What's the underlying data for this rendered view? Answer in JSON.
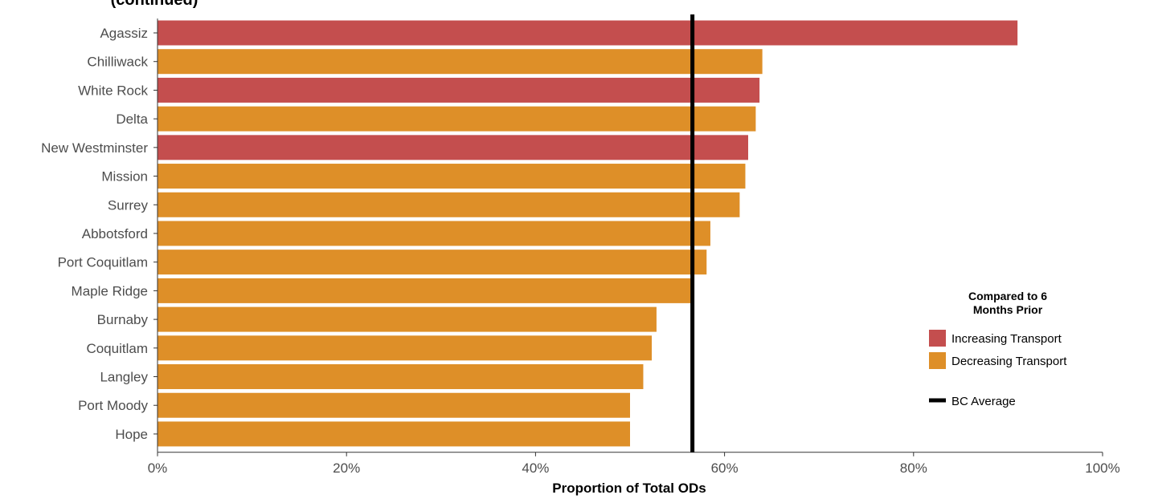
{
  "chart_data": {
    "type": "bar",
    "orientation": "horizontal",
    "title": "(continued)",
    "xlabel": "Proportion of Total ODs",
    "ylabel": "",
    "xlim": [
      0,
      100
    ],
    "x_unit": "%",
    "xticks": [
      0,
      20,
      40,
      60,
      80,
      100
    ],
    "xtick_labels": [
      "0%",
      "20%",
      "40%",
      "60%",
      "80%",
      "100%"
    ],
    "categories": [
      "Agassiz",
      "Chilliwack",
      "White Rock",
      "Delta",
      "New Westminster",
      "Mission",
      "Surrey",
      "Abbotsford",
      "Port Coquitlam",
      "Maple Ridge",
      "Burnaby",
      "Coquitlam",
      "Langley",
      "Port Moody",
      "Hope"
    ],
    "values": [
      91.0,
      64.0,
      63.7,
      63.3,
      62.5,
      62.2,
      61.6,
      58.5,
      58.1,
      56.4,
      52.8,
      52.3,
      51.4,
      50.0,
      50.0
    ],
    "groups": [
      "Increasing Transport",
      "Decreasing Transport",
      "Increasing Transport",
      "Decreasing Transport",
      "Increasing Transport",
      "Decreasing Transport",
      "Decreasing Transport",
      "Decreasing Transport",
      "Decreasing Transport",
      "Decreasing Transport",
      "Decreasing Transport",
      "Decreasing Transport",
      "Decreasing Transport",
      "Decreasing Transport",
      "Decreasing Transport"
    ],
    "colors": {
      "Increasing Transport": "#c44e4e",
      "Decreasing Transport": "#de8f28",
      "reference_line": "#000000"
    },
    "reference_line": {
      "label": "BC Average",
      "value": 56.6
    },
    "legend": {
      "title": "Compared to 6 Months Prior",
      "title_lines": [
        "Compared to 6",
        "Months Prior"
      ],
      "entries": [
        "Increasing Transport",
        "Decreasing Transport"
      ],
      "position": "right"
    },
    "grid": false
  }
}
